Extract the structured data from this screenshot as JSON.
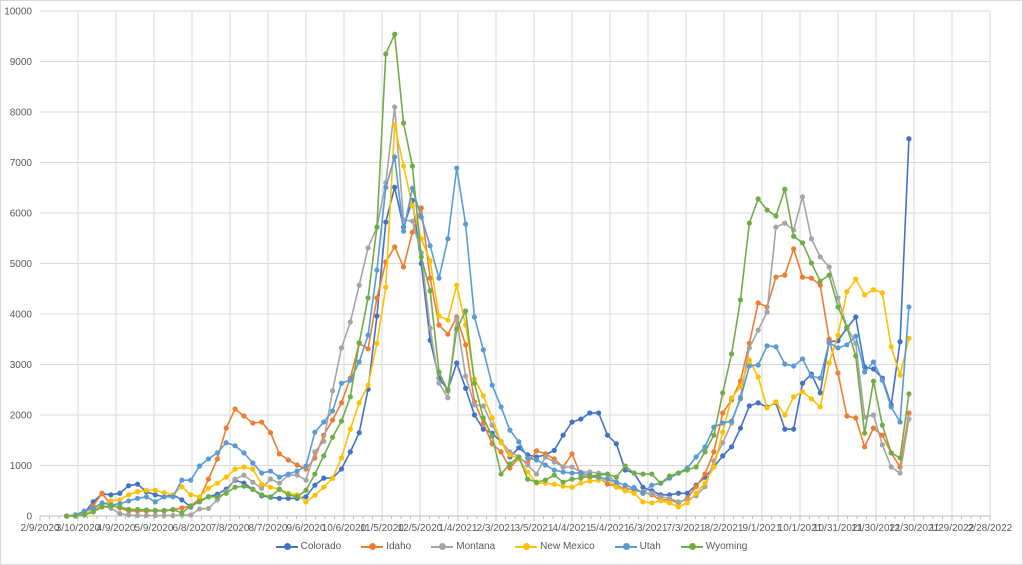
{
  "chart_data": {
    "type": "line",
    "title": "",
    "xlabel": "",
    "ylabel": "",
    "ylim": [
      0,
      10000
    ],
    "y_ticks": [
      "0",
      "1000",
      "2000",
      "3000",
      "4000",
      "5000",
      "6000",
      "7000",
      "8000",
      "9000",
      "10000"
    ],
    "x_axis": {
      "min": "2/9/2020",
      "max": "2/28/2022"
    },
    "x_ticks": [
      "2/9/2020",
      "3/10/2020",
      "4/9/2020",
      "5/9/2020",
      "6/8/2020",
      "7/8/2020",
      "8/7/2020",
      "9/6/2020",
      "10/6/2020",
      "11/5/2020",
      "12/5/2020",
      "1/4/2021",
      "2/3/2021",
      "3/5/2021",
      "4/4/2021",
      "5/4/2021",
      "6/3/2021",
      "7/3/2021",
      "8/2/2021",
      "9/1/2021",
      "10/1/2021",
      "10/31/2021",
      "11/30/2021",
      "12/30/2021",
      "1/29/2022",
      "2/28/2022"
    ],
    "x_start": "3/1/2020",
    "x_step_days": 7,
    "grid": true,
    "legend_position": "bottom",
    "series": [
      {
        "name": "Colorado",
        "color": "#4472C4",
        "values": [
          0,
          20,
          60,
          280,
          440,
          420,
          450,
          600,
          630,
          480,
          420,
          380,
          420,
          320,
          180,
          300,
          380,
          430,
          530,
          710,
          650,
          530,
          400,
          370,
          350,
          350,
          350,
          380,
          610,
          750,
          750,
          930,
          1270,
          1650,
          2510,
          3960,
          5820,
          6510,
          5720,
          6250,
          5000,
          3480,
          2730,
          2500,
          3030,
          2530,
          2000,
          1720,
          1640,
          1470,
          1170,
          1350,
          1210,
          1170,
          1210,
          1300,
          1600,
          1860,
          1920,
          2040,
          2040,
          1600,
          1430,
          910,
          850,
          570,
          500,
          420,
          420,
          450,
          450,
          610,
          770,
          970,
          1190,
          1370,
          1740,
          2180,
          2240,
          2160,
          2240,
          1720,
          1720,
          2630,
          2810,
          2440,
          3450,
          3470,
          3720,
          3940,
          2950,
          2910,
          2730,
          2200,
          3450,
          7470
        ]
      },
      {
        "name": "Idaho",
        "color": "#ED7D31",
        "values": [
          0,
          20,
          60,
          200,
          450,
          220,
          160,
          100,
          100,
          100,
          100,
          100,
          120,
          160,
          200,
          340,
          730,
          1130,
          1740,
          2120,
          1980,
          1840,
          1860,
          1650,
          1230,
          1110,
          1010,
          930,
          1150,
          1600,
          1900,
          2240,
          2730,
          3420,
          3310,
          4320,
          5030,
          5330,
          4930,
          5620,
          6100,
          4710,
          3780,
          3600,
          3940,
          3390,
          2260,
          1840,
          1430,
          1270,
          950,
          1150,
          1050,
          1290,
          1230,
          1130,
          970,
          1230,
          810,
          770,
          770,
          630,
          590,
          550,
          510,
          480,
          420,
          320,
          320,
          260,
          350,
          580,
          830,
          1270,
          2040,
          2300,
          2670,
          3420,
          4220,
          4140,
          4730,
          4770,
          5290,
          4730,
          4710,
          4570,
          3500,
          2830,
          1980,
          1940,
          1370,
          1740,
          1600,
          1250,
          970,
          2040
        ]
      },
      {
        "name": "Montana",
        "color": "#A5A5A5",
        "values": [
          0,
          10,
          30,
          100,
          200,
          150,
          50,
          20,
          10,
          10,
          10,
          10,
          10,
          20,
          20,
          140,
          150,
          320,
          480,
          730,
          810,
          670,
          550,
          730,
          650,
          810,
          810,
          710,
          1270,
          1480,
          2480,
          3330,
          3840,
          4570,
          5310,
          5720,
          6600,
          8100,
          5860,
          5840,
          5210,
          3720,
          2630,
          2340,
          3900,
          2770,
          2200,
          2180,
          1800,
          1470,
          1270,
          1170,
          1010,
          830,
          1170,
          1070,
          970,
          970,
          870,
          870,
          850,
          830,
          650,
          500,
          570,
          450,
          450,
          380,
          350,
          280,
          320,
          400,
          580,
          1090,
          1450,
          1840,
          2360,
          3330,
          3680,
          4040,
          5720,
          5800,
          5660,
          6320,
          5490,
          5130,
          4930,
          4320,
          3740,
          3420,
          1960,
          2000,
          1410,
          970,
          850,
          1920
        ]
      },
      {
        "name": "New Mexico",
        "color": "#FFC000",
        "values": [
          0,
          0,
          30,
          120,
          220,
          300,
          320,
          420,
          480,
          510,
          510,
          460,
          420,
          580,
          420,
          380,
          550,
          650,
          770,
          930,
          970,
          930,
          630,
          570,
          530,
          450,
          420,
          280,
          410,
          570,
          750,
          1150,
          1720,
          2240,
          2590,
          3420,
          4530,
          7740,
          6930,
          6140,
          5490,
          5050,
          3960,
          3880,
          4570,
          3780,
          2710,
          2380,
          1940,
          1450,
          1210,
          1130,
          870,
          650,
          650,
          630,
          590,
          570,
          650,
          690,
          710,
          730,
          570,
          500,
          450,
          280,
          260,
          300,
          260,
          180,
          260,
          450,
          650,
          970,
          1660,
          2340,
          2560,
          3090,
          2750,
          2140,
          2260,
          2000,
          2360,
          2460,
          2320,
          2160,
          3030,
          3580,
          4440,
          4690,
          4380,
          4480,
          4420,
          3350,
          2790,
          3520
        ]
      },
      {
        "name": "Utah",
        "color": "#5B9BD5",
        "values": [
          0,
          20,
          100,
          150,
          260,
          220,
          240,
          300,
          350,
          380,
          280,
          380,
          380,
          710,
          710,
          990,
          1130,
          1250,
          1450,
          1390,
          1250,
          1050,
          850,
          890,
          770,
          830,
          890,
          990,
          1660,
          1860,
          2080,
          2630,
          2690,
          3050,
          3580,
          4870,
          6510,
          7110,
          5640,
          6490,
          5920,
          5350,
          4710,
          5490,
          6890,
          5780,
          3940,
          3290,
          2590,
          2160,
          1700,
          1470,
          1150,
          1110,
          1010,
          910,
          870,
          850,
          850,
          810,
          770,
          730,
          670,
          610,
          550,
          450,
          610,
          650,
          750,
          850,
          950,
          1170,
          1370,
          1760,
          1840,
          1880,
          2320,
          2970,
          2990,
          3370,
          3350,
          3010,
          2970,
          3110,
          2770,
          2730,
          3430,
          3330,
          3390,
          3560,
          2850,
          3050,
          2690,
          2160,
          1860,
          4140
        ]
      },
      {
        "name": "Wyoming",
        "color": "#70AD47",
        "values": [
          0,
          0,
          20,
          80,
          180,
          200,
          180,
          130,
          130,
          120,
          110,
          110,
          130,
          60,
          200,
          280,
          380,
          380,
          450,
          570,
          590,
          530,
          420,
          380,
          530,
          420,
          380,
          510,
          830,
          1190,
          1560,
          1880,
          2360,
          3430,
          4320,
          5720,
          9150,
          9540,
          7780,
          6930,
          5130,
          4460,
          2850,
          2480,
          3700,
          4060,
          2630,
          1940,
          1580,
          830,
          1030,
          1170,
          730,
          670,
          710,
          810,
          670,
          730,
          750,
          790,
          810,
          830,
          770,
          990,
          850,
          830,
          830,
          650,
          790,
          850,
          910,
          970,
          1270,
          1600,
          2440,
          3210,
          4280,
          5800,
          6280,
          6060,
          5940,
          6470,
          5540,
          5410,
          5010,
          4650,
          4770,
          4140,
          3740,
          3170,
          1640,
          2670,
          1800,
          1250,
          1150,
          2420
        ]
      }
    ]
  }
}
